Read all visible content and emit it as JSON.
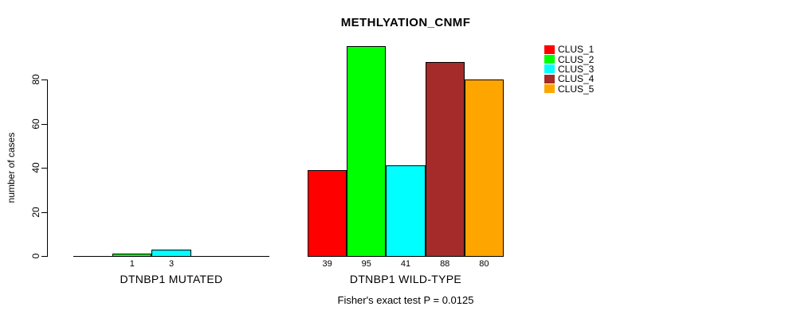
{
  "chart_data": {
    "type": "bar",
    "title": "METHLYATION_CNMF",
    "ylabel": "number of cases",
    "xlabel": "",
    "ylim": [
      0,
      80
    ],
    "yticks": [
      0,
      20,
      40,
      60,
      80
    ],
    "grid": false,
    "legend_position": "top-right",
    "categories": [
      "DTNBP1 MUTATED",
      "DTNBP1 WILD-TYPE"
    ],
    "series": [
      {
        "name": "CLUS_1",
        "color": "#FF0000",
        "values": [
          0,
          39
        ]
      },
      {
        "name": "CLUS_2",
        "color": "#00FF00",
        "values": [
          1,
          95
        ]
      },
      {
        "name": "CLUS_3",
        "color": "#00FFFF",
        "values": [
          3,
          41
        ]
      },
      {
        "name": "CLUS_4",
        "color": "#A52A2A",
        "values": [
          0,
          88
        ]
      },
      {
        "name": "CLUS_5",
        "color": "#FFA500",
        "values": [
          0,
          80
        ]
      }
    ],
    "bar_labels": [
      [
        "",
        "1",
        "3",
        "",
        ""
      ],
      [
        "39",
        "95",
        "41",
        "88",
        "80"
      ]
    ],
    "annotation": "Fisher's exact test P = 0.0125"
  }
}
